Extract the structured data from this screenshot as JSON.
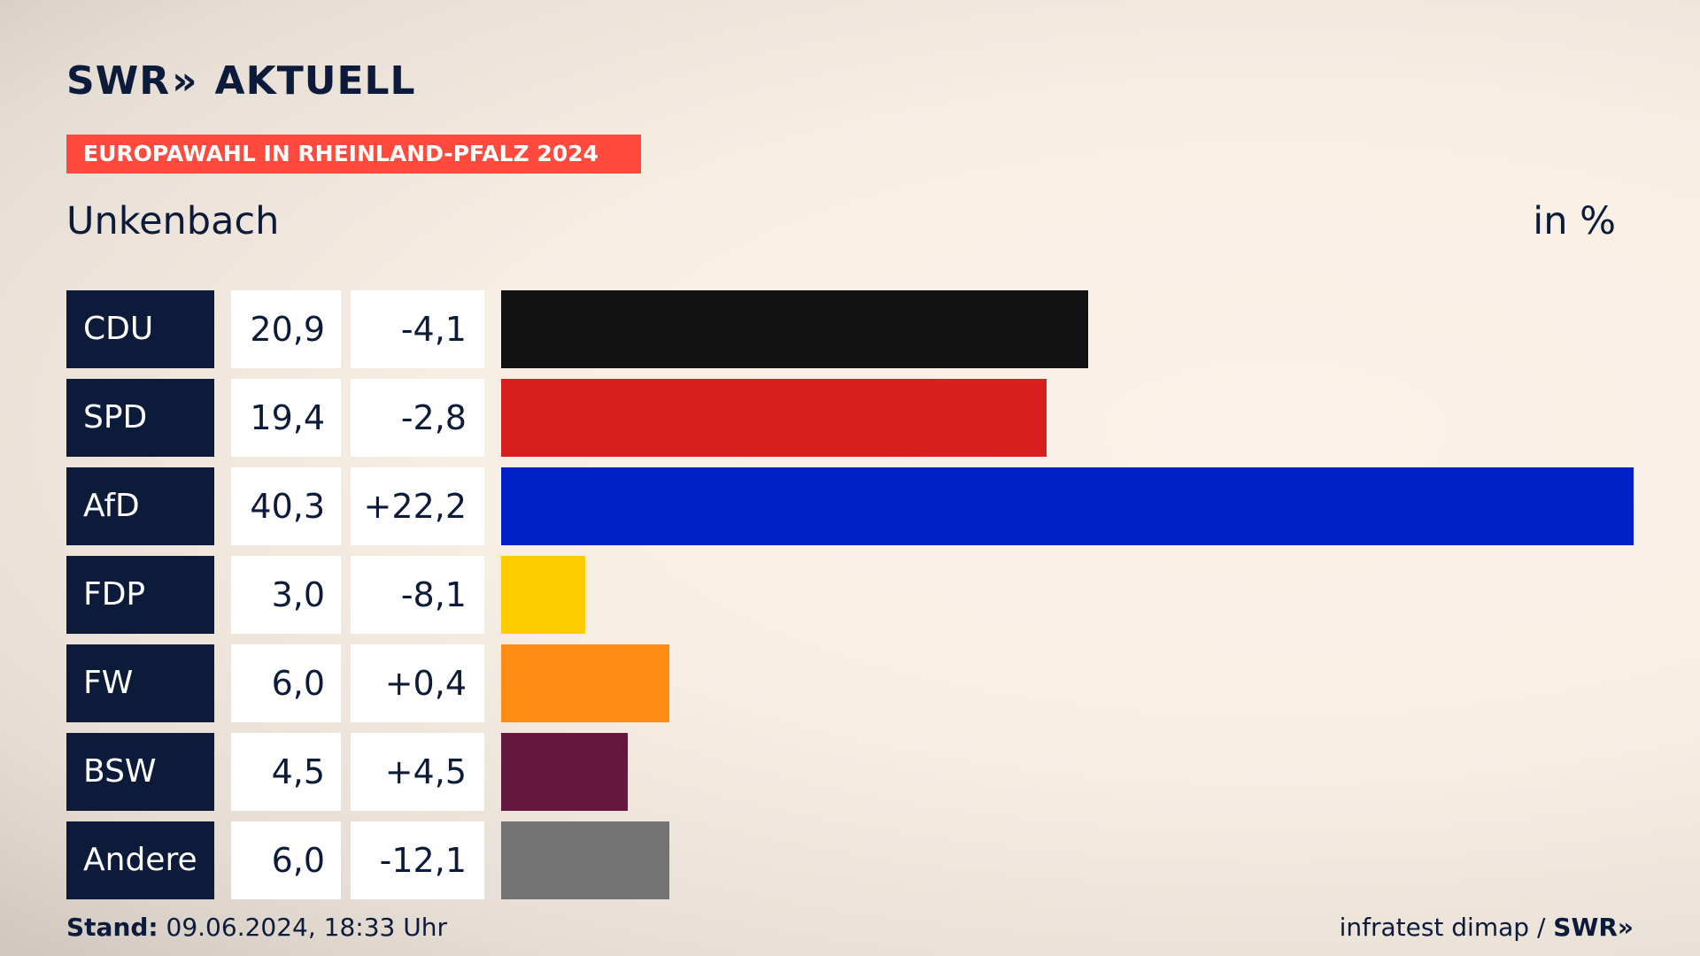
{
  "brand": {
    "logo_swr": "SWR",
    "logo_chevrons": "»",
    "logo_aktuell": "AKTUELL"
  },
  "banner": "EUROPAWAHL IN RHEINLAND-PFALZ 2024",
  "location": "Unkenbach",
  "unit": "in %",
  "chart_data": {
    "type": "bar",
    "orientation": "horizontal",
    "title": "",
    "xlim": [
      0,
      40.3
    ],
    "categories": [
      "CDU",
      "SPD",
      "AfD",
      "FDP",
      "FW",
      "BSW",
      "Andere"
    ],
    "values": [
      20.9,
      19.4,
      40.3,
      3.0,
      6.0,
      4.5,
      6.0
    ],
    "value_labels": [
      "20,9",
      "19,4",
      "40,3",
      "3,0",
      "6,0",
      "4,5",
      "6,0"
    ],
    "diff_labels": [
      "-4,1",
      "-2,8",
      "+22,2",
      "-8,1",
      "+0,4",
      "+4,5",
      "-12,1"
    ],
    "colors": [
      "#121212",
      "#d71f1f",
      "#0021c7",
      "#ffcc00",
      "#ff8c14",
      "#65173d",
      "#737373"
    ]
  },
  "footer": {
    "stand_label": "Stand:",
    "stand_value": "09.06.2024, 18:33 Uhr",
    "source": "infratest dimap /",
    "source_logo": "SWR»"
  }
}
